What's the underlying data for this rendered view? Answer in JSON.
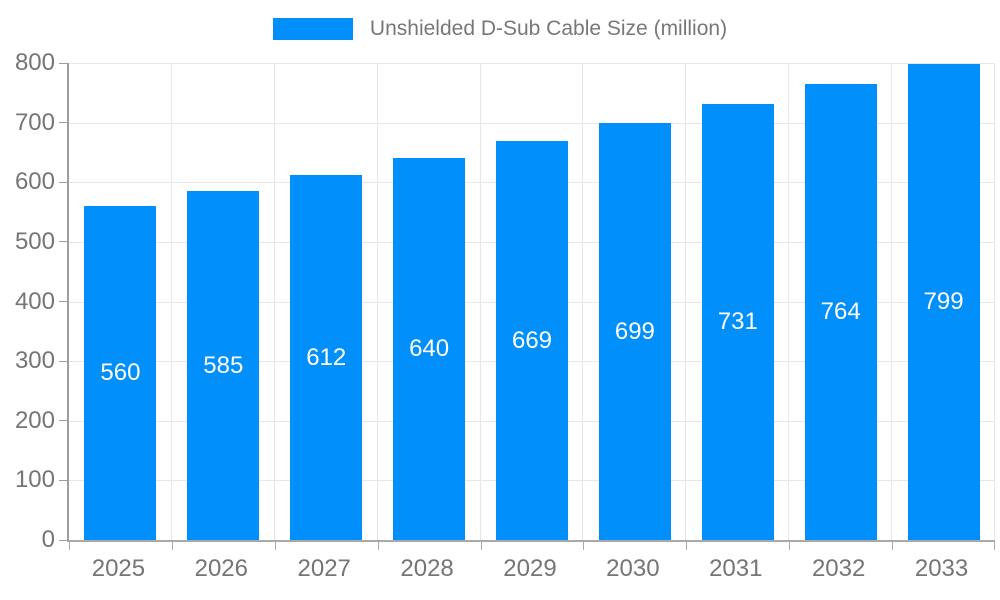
{
  "legend": {
    "label": "Unshielded D-Sub Cable Size (million)"
  },
  "chart_data": {
    "type": "bar",
    "title": "Unshielded D-Sub Cable Size (million)",
    "categories": [
      "2025",
      "2026",
      "2027",
      "2028",
      "2029",
      "2030",
      "2031",
      "2032",
      "2033"
    ],
    "values": [
      560,
      585,
      612,
      640,
      669,
      699,
      731,
      764,
      799
    ],
    "series": [
      {
        "name": "Unshielded D-Sub Cable Size (million)",
        "values": [
          560,
          585,
          612,
          640,
          669,
          699,
          731,
          764,
          799
        ]
      }
    ],
    "xlabel": "",
    "ylabel": "",
    "ylim": [
      0,
      800
    ],
    "ytick_step": 100,
    "yticks": [
      0,
      100,
      200,
      300,
      400,
      500,
      600,
      700,
      800
    ],
    "grid": true,
    "legend_position": "top",
    "colors": {
      "bar": "#008FFB",
      "bar_label_text": "#FFFFFF",
      "axis_text": "#757575",
      "legend_text": "#75787B",
      "gridline": "#E7E7E7",
      "axis_line": "#9E9E9E",
      "background": "#FFFFFF"
    }
  }
}
